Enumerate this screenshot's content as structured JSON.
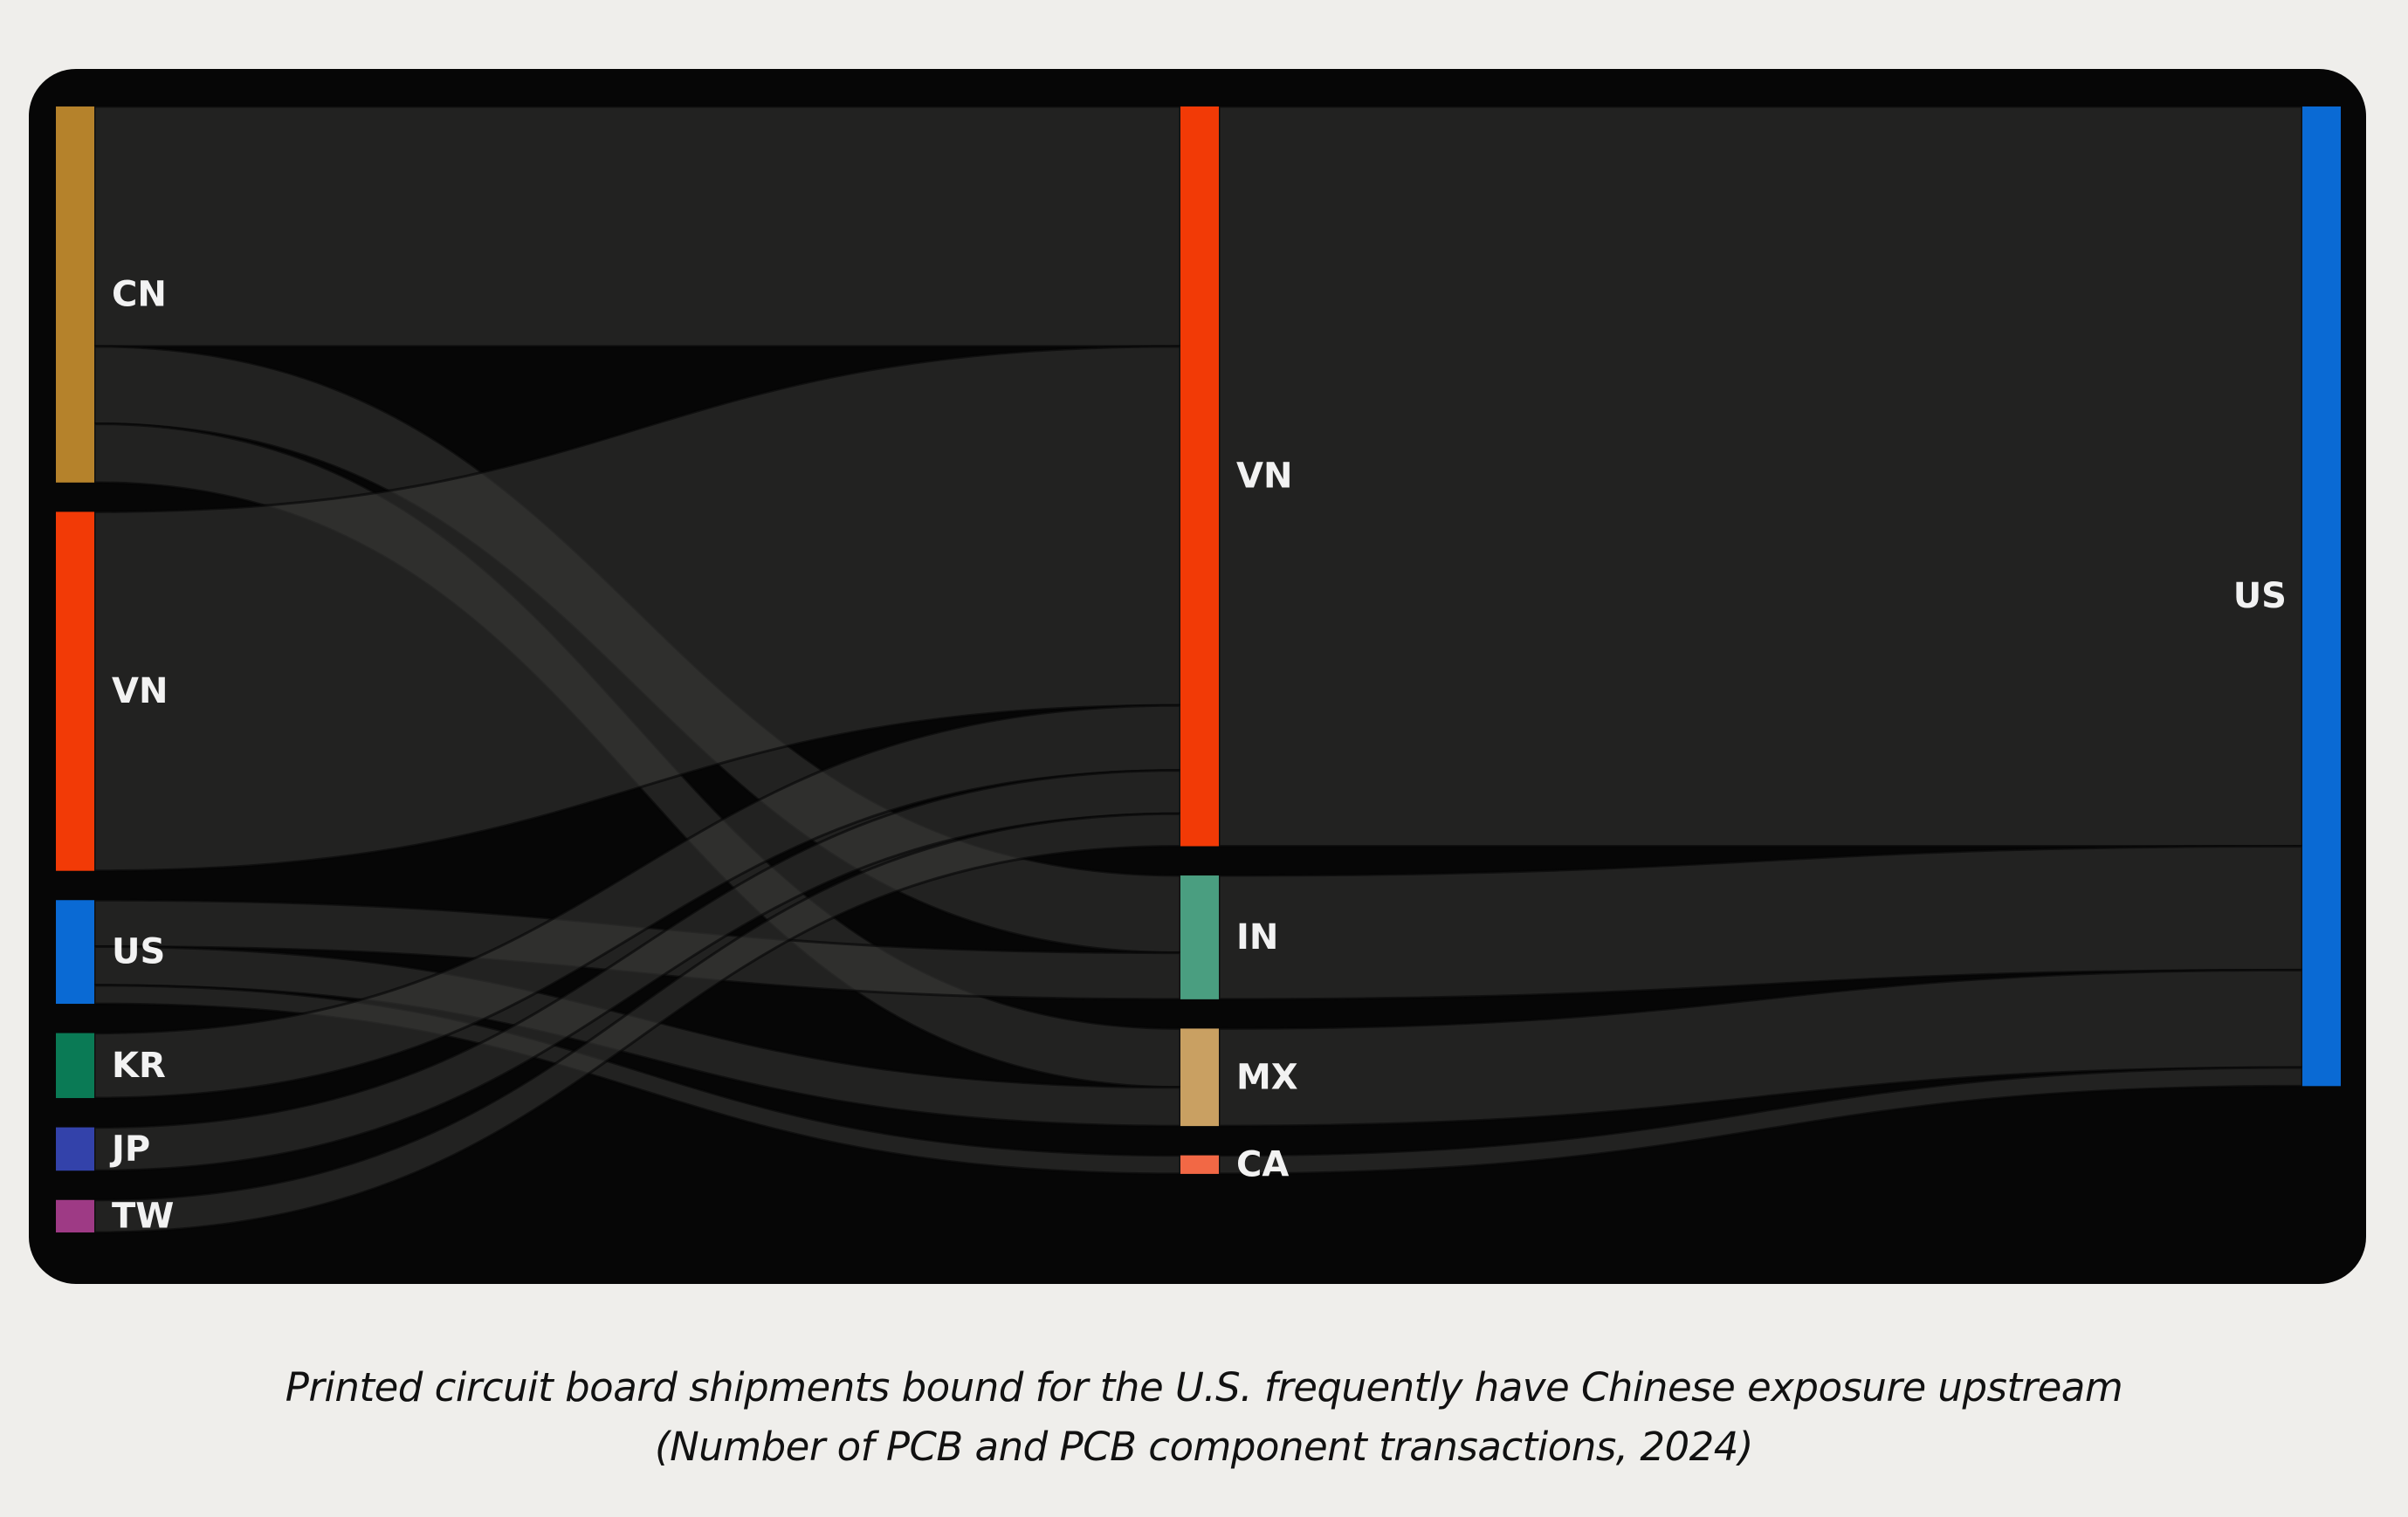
{
  "chart_data": {
    "type": "sankey",
    "title": "",
    "caption": {
      "line1": "Printed circuit board shipments bound for the U.S. frequently have Chinese exposure upstream",
      "line2": "(Number of PCB and PCB component transactions, 2024)"
    },
    "columns": [
      [
        {
          "id": "s_CN",
          "label": "CN",
          "color": "#b5822b"
        },
        {
          "id": "s_VN",
          "label": "VN",
          "color": "#f23a06"
        },
        {
          "id": "s_US",
          "label": "US",
          "color": "#0a6ad4"
        },
        {
          "id": "s_KR",
          "label": "KR",
          "color": "#0a7a55"
        },
        {
          "id": "s_JP",
          "label": "JP",
          "color": "#3342aa"
        },
        {
          "id": "s_TW",
          "label": "TW",
          "color": "#9e3a85"
        }
      ],
      [
        {
          "id": "m_VN",
          "label": "VN",
          "color": "#f23a06"
        },
        {
          "id": "m_IN",
          "label": "IN",
          "color": "#4a9e80"
        },
        {
          "id": "m_MX",
          "label": "MX",
          "color": "#c9a062"
        },
        {
          "id": "m_CA",
          "label": "CA",
          "color": "#f26845"
        }
      ],
      [
        {
          "id": "d_US",
          "label": "US",
          "color": "#0a6ad4"
        }
      ]
    ],
    "links": [
      {
        "source": "s_CN",
        "target": "m_VN",
        "value": 155
      },
      {
        "source": "s_CN",
        "target": "m_IN",
        "value": 50
      },
      {
        "source": "s_CN",
        "target": "m_MX",
        "value": 38
      },
      {
        "source": "s_VN",
        "target": "m_VN",
        "value": 232
      },
      {
        "source": "s_US",
        "target": "m_IN",
        "value": 30
      },
      {
        "source": "s_US",
        "target": "m_MX",
        "value": 25
      },
      {
        "source": "s_US",
        "target": "m_CA",
        "value": 12
      },
      {
        "source": "s_KR",
        "target": "m_VN",
        "value": 42
      },
      {
        "source": "s_JP",
        "target": "m_VN",
        "value": 28
      },
      {
        "source": "s_TW",
        "target": "m_VN",
        "value": 21
      },
      {
        "source": "m_VN",
        "target": "d_US",
        "value": 478
      },
      {
        "source": "m_IN",
        "target": "d_US",
        "value": 80
      },
      {
        "source": "m_MX",
        "target": "d_US",
        "value": 63
      },
      {
        "source": "m_CA",
        "target": "d_US",
        "value": 12
      }
    ]
  }
}
